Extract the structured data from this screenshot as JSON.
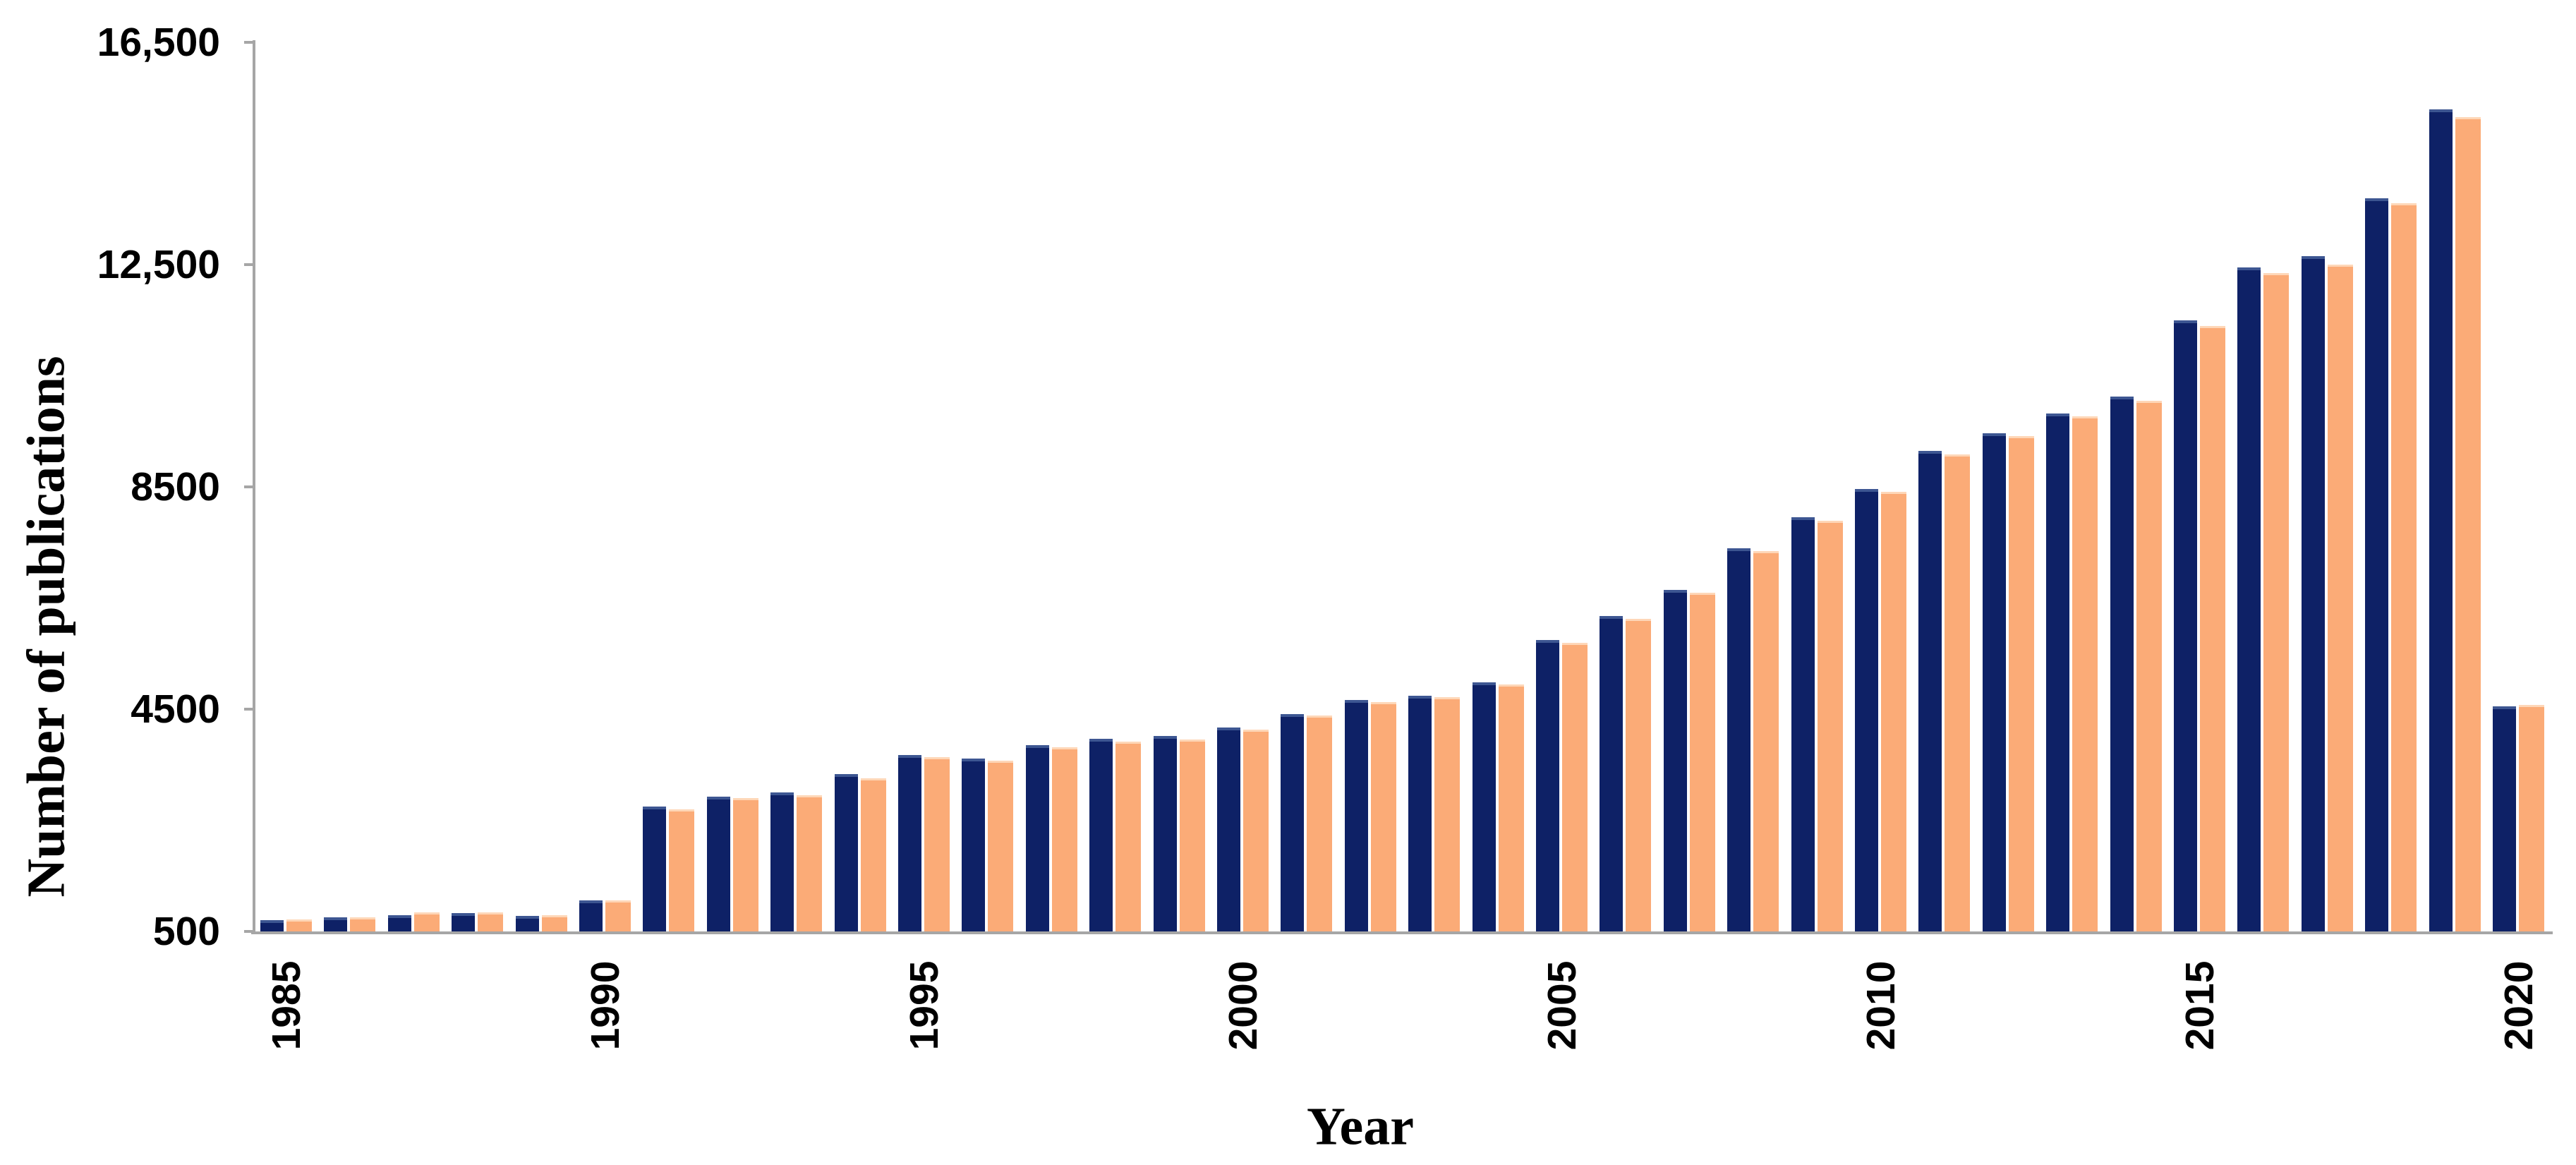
{
  "chart_data": {
    "type": "bar",
    "title": "",
    "xlabel": "Year",
    "ylabel": "Number of publications",
    "grid": false,
    "legend_position": "none",
    "ylim": [
      500,
      16500
    ],
    "y_ticks": [
      {
        "label": "16,500",
        "value": 16500
      },
      {
        "label": "12,500",
        "value": 12500
      },
      {
        "label": "8500",
        "value": 8500
      },
      {
        "label": "4500",
        "value": 4500
      },
      {
        "label": "500",
        "value": 500
      }
    ],
    "x_tick_labels": [
      "1985",
      "1990",
      "1995",
      "2000",
      "2005",
      "2010",
      "2015",
      "2020"
    ],
    "categories": [
      1985,
      1986,
      1987,
      1988,
      1989,
      1990,
      1991,
      1992,
      1993,
      1994,
      1995,
      1996,
      1997,
      1998,
      1999,
      2000,
      2001,
      2002,
      2003,
      2004,
      2005,
      2006,
      2007,
      2008,
      2009,
      2010,
      2011,
      2012,
      2013,
      2014,
      2015,
      2016,
      2017,
      2018,
      2019,
      2020
    ],
    "series": [
      {
        "name": "series-1-dark-navy",
        "color": "#0e2166",
        "values": [
          700,
          760,
          790,
          835,
          785,
          1060,
          2750,
          2930,
          3000,
          3330,
          3675,
          3610,
          3855,
          3965,
          4020,
          4170,
          4410,
          4670,
          4740,
          4980,
          5750,
          6180,
          6650,
          7400,
          7950,
          8460,
          9150,
          9470,
          9820,
          10130,
          11500,
          12450,
          12650,
          13700,
          15300,
          4550
        ]
      },
      {
        "name": "series-2-peach-orange",
        "color": "#fbab77",
        "values": [
          720,
          750,
          845,
          845,
          795,
          1065,
          2700,
          2900,
          2950,
          3260,
          3640,
          3570,
          3815,
          3910,
          3960,
          4130,
          4380,
          4630,
          4710,
          4940,
          5690,
          6130,
          6600,
          7340,
          7890,
          8410,
          9090,
          9410,
          9770,
          10050,
          11400,
          12350,
          12500,
          13600,
          15150,
          4570
        ]
      }
    ],
    "axis_color": "#a6a6a6",
    "text_color": "#000000",
    "background_color": "#ffffff"
  }
}
